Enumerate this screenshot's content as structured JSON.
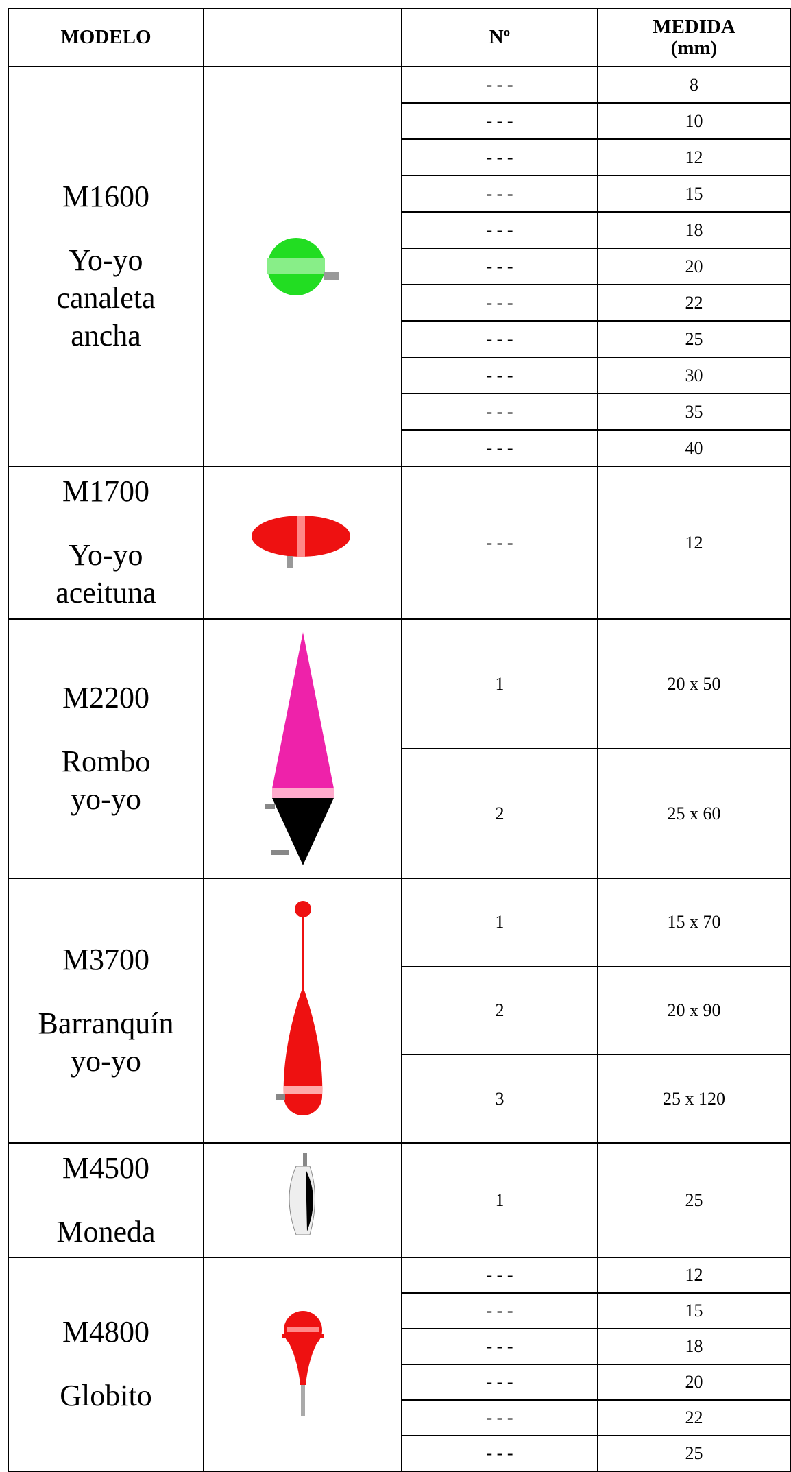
{
  "header": {
    "modelo": "MODELO",
    "numero": "Nº",
    "medida": "MEDIDA\n(mm)"
  },
  "groups": [
    {
      "model": "M1600",
      "name": "Yo-yo\ncanaleta\nancha",
      "rows": [
        [
          "- - -",
          "8"
        ],
        [
          "- - -",
          "10"
        ],
        [
          "- - -",
          "12"
        ],
        [
          "- - -",
          "15"
        ],
        [
          "- - -",
          "18"
        ],
        [
          "- - -",
          "20"
        ],
        [
          "- - -",
          "22"
        ],
        [
          "- - -",
          "25"
        ],
        [
          "- - -",
          "30"
        ],
        [
          "- - -",
          "35"
        ],
        [
          "- - -",
          "40"
        ]
      ]
    },
    {
      "model": "M1700",
      "name": "Yo-yo\naceituna",
      "rows": [
        [
          "- - -",
          "12"
        ]
      ]
    },
    {
      "model": "M2200",
      "name": "Rombo\nyo-yo",
      "rows": [
        [
          "1",
          "20 x 50"
        ],
        [
          "2",
          "25 x 60"
        ]
      ]
    },
    {
      "model": "M3700",
      "name": "Barranquín\nyo-yo",
      "rows": [
        [
          "1",
          "15 x 70"
        ],
        [
          "2",
          "20 x 90"
        ],
        [
          "3",
          "25 x 120"
        ]
      ]
    },
    {
      "model": "M4500",
      "name": "Moneda",
      "rows": [
        [
          "1",
          "25"
        ]
      ]
    },
    {
      "model": "M4800",
      "name": "Globito",
      "rows": [
        [
          "- - -",
          "12"
        ],
        [
          "- - -",
          "15"
        ],
        [
          "- - -",
          "18"
        ],
        [
          "- - -",
          "20"
        ],
        [
          "- - -",
          "22"
        ],
        [
          "- - -",
          "25"
        ]
      ]
    }
  ]
}
